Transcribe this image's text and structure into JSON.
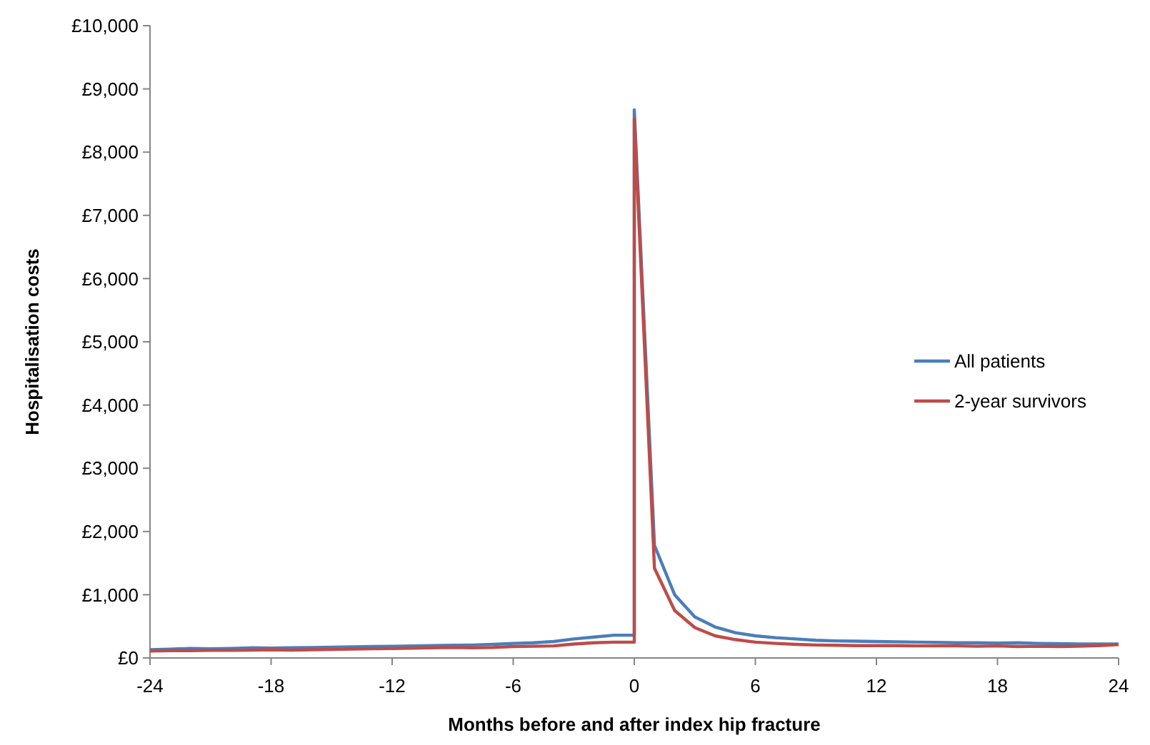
{
  "chart_data": {
    "type": "line",
    "xlabel": "Months before and after index hip fracture",
    "ylabel": "Hospitalisation costs",
    "xlim": [
      -24,
      24
    ],
    "xticks": [
      -24,
      -18,
      -12,
      -6,
      0,
      6,
      12,
      18,
      24
    ],
    "ylim": [
      0,
      10000
    ],
    "yticks": [
      {
        "value": 0,
        "label": "£0"
      },
      {
        "value": 1000,
        "label": "£1,000"
      },
      {
        "value": 2000,
        "label": "£2,000"
      },
      {
        "value": 3000,
        "label": "£3,000"
      },
      {
        "value": 4000,
        "label": "£4,000"
      },
      {
        "value": 5000,
        "label": "£5,000"
      },
      {
        "value": 6000,
        "label": "£6,000"
      },
      {
        "value": 7000,
        "label": "£7,000"
      },
      {
        "value": 8000,
        "label": "£8,000"
      },
      {
        "value": 9000,
        "label": "£9,000"
      },
      {
        "value": 10000,
        "label": "£10,000"
      }
    ],
    "legend": "right",
    "marker": "none",
    "grid": false,
    "x": [
      -24,
      -23,
      -22,
      -21,
      -20,
      -19,
      -18,
      -17,
      -16,
      -15,
      -14,
      -13,
      -12,
      -11,
      -10,
      -9,
      -8,
      -7,
      -6,
      -5,
      -4,
      -3,
      -2,
      -1,
      0,
      0,
      1,
      2,
      3,
      4,
      5,
      6,
      7,
      8,
      9,
      10,
      11,
      12,
      13,
      14,
      15,
      16,
      17,
      18,
      19,
      20,
      21,
      22,
      23,
      24
    ],
    "series": [
      {
        "name": "All patients",
        "color": "#4a7ebb",
        "values": [
          130,
          140,
          150,
          145,
          150,
          160,
          155,
          160,
          165,
          170,
          175,
          180,
          185,
          190,
          195,
          200,
          205,
          215,
          230,
          240,
          260,
          300,
          330,
          360,
          360,
          8670,
          1780,
          1000,
          650,
          490,
          400,
          350,
          320,
          300,
          280,
          270,
          265,
          260,
          255,
          250,
          245,
          240,
          240,
          235,
          240,
          230,
          225,
          220,
          220,
          220
        ]
      },
      {
        "name": "2-year survivors",
        "color": "#be4b48",
        "values": [
          110,
          115,
          115,
          120,
          120,
          125,
          130,
          125,
          130,
          135,
          140,
          145,
          150,
          155,
          160,
          165,
          160,
          165,
          180,
          185,
          190,
          220,
          240,
          250,
          250,
          8530,
          1420,
          750,
          480,
          350,
          290,
          250,
          230,
          215,
          205,
          200,
          195,
          195,
          195,
          190,
          190,
          190,
          185,
          190,
          180,
          185,
          180,
          185,
          195,
          210
        ]
      }
    ]
  }
}
